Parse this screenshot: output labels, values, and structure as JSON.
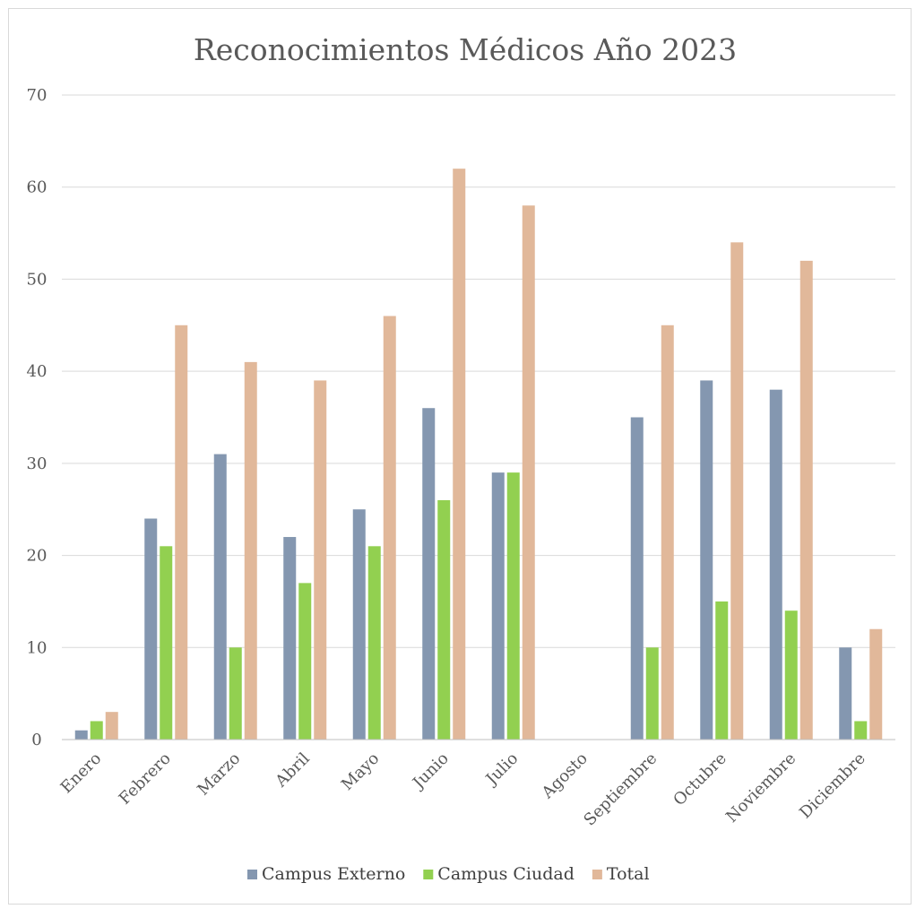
{
  "chart_data": {
    "type": "bar",
    "title": "Reconocimientos Médicos Año 2023",
    "categories": [
      "Enero",
      "Febrero",
      "Marzo",
      "Abril",
      "Mayo",
      "Junio",
      "Julio",
      "Agosto",
      "Septiembre",
      "Octubre",
      "Noviembre",
      "Diciembre"
    ],
    "series": [
      {
        "name": "Campus Externo",
        "color": "#8497b0",
        "values": [
          1,
          24,
          31,
          22,
          25,
          36,
          29,
          0,
          35,
          39,
          38,
          10
        ]
      },
      {
        "name": "Campus Ciudad",
        "color": "#92d050",
        "values": [
          2,
          21,
          10,
          17,
          21,
          26,
          29,
          0,
          10,
          15,
          14,
          2
        ]
      },
      {
        "name": "Total",
        "color": "#e1b89a",
        "values": [
          3,
          45,
          41,
          39,
          46,
          62,
          58,
          0,
          45,
          54,
          52,
          12
        ]
      }
    ],
    "ylim": [
      0,
      70
    ],
    "yticks": [
      0,
      10,
      20,
      30,
      40,
      50,
      60,
      70
    ],
    "grid": true,
    "legend_position": "bottom",
    "gridline_color": "#d9d9d9",
    "axis_color": "#bfbfbf"
  }
}
